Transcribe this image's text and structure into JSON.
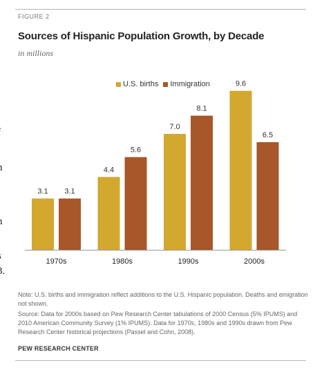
{
  "figure_label": "FIGURE 2",
  "edge_glyphs": [
    "f",
    "n",
    "n",
    "s",
    "3."
  ],
  "chart_data": {
    "type": "bar",
    "title": "Sources of Hispanic Population Growth, by Decade",
    "subtitle": "in millions",
    "categories": [
      "1970s",
      "1980s",
      "1990s",
      "2000s"
    ],
    "series": [
      {
        "name": "U.S. births",
        "values": [
          3.1,
          4.4,
          7.0,
          9.6
        ],
        "color": "#d3a82f"
      },
      {
        "name": "Immigration",
        "values": [
          3.1,
          5.6,
          8.1,
          6.5
        ],
        "color": "#a7572a"
      }
    ],
    "value_labels": [
      [
        "3.1",
        "4.4",
        "7.0",
        "9.6"
      ],
      [
        "3.1",
        "5.6",
        "8.1",
        "6.5"
      ]
    ],
    "ylim": [
      0,
      10
    ],
    "grid": false,
    "legend": "top-center"
  },
  "notes": {
    "note": "Note: U.S. births and immigration reflect additions to the U.S. Hispanic population. Deaths and emigration not shown.",
    "source": "Source: Data for 2000s based on Pew Research Center tabulations of 2000 Census (5% IPUMS) and 2010 American Community Survey (1% IPUMS). Data for 1970s, 1980s and 1990s drawn from Pew Research Center historical projections (Passel and Cohn, 2008).",
    "credit": "PEW RESEARCH CENTER"
  }
}
